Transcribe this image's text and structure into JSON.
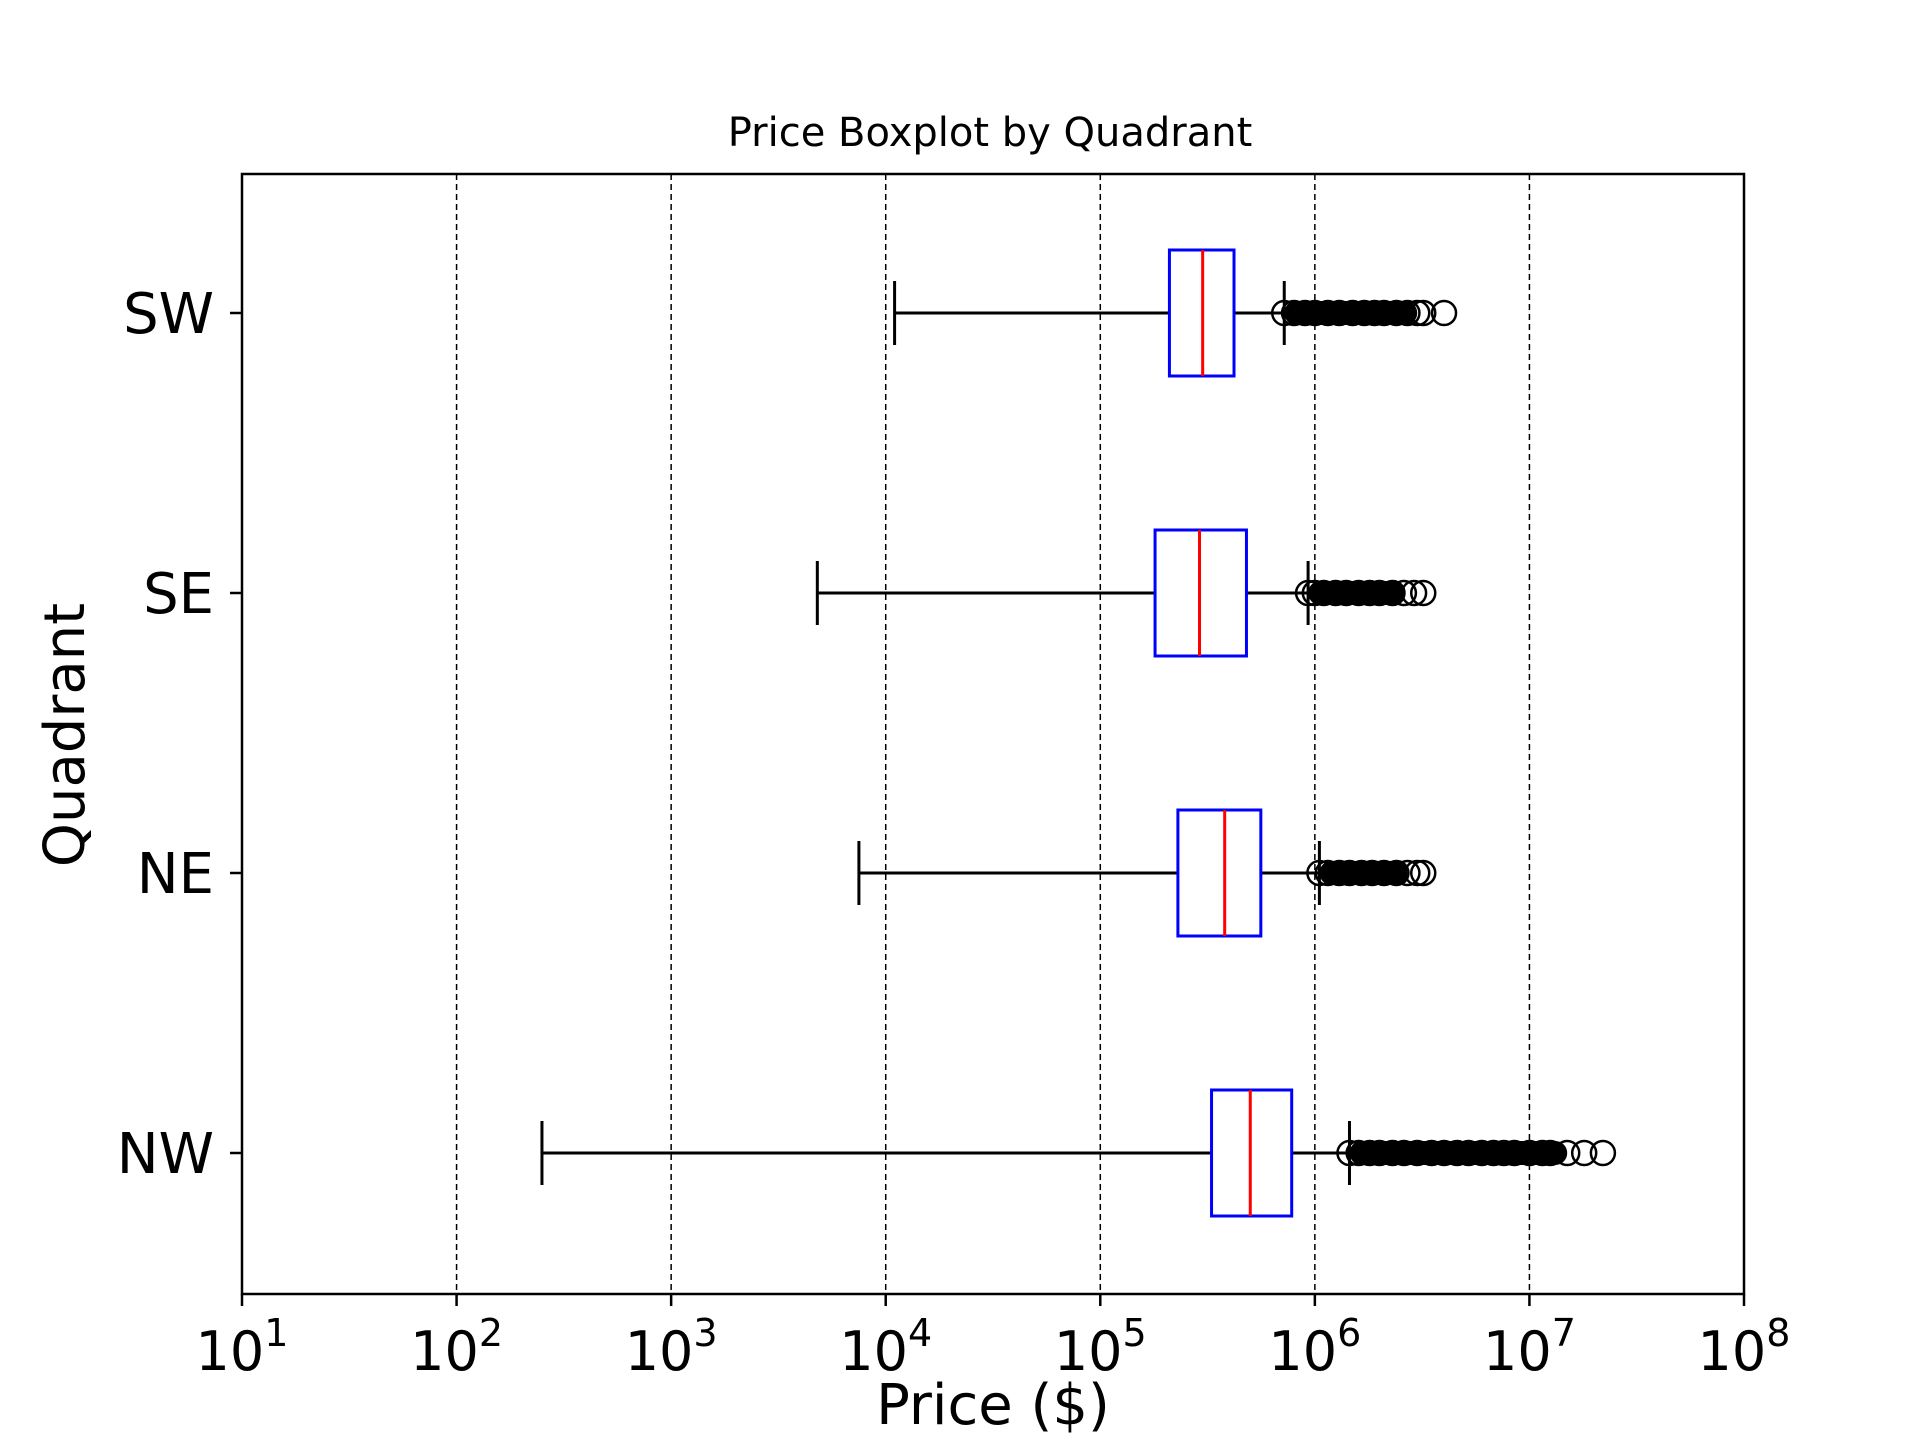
{
  "chart_data": {
    "type": "boxplot",
    "orientation": "horizontal",
    "title": "Price Boxplot by Quadrant",
    "xlabel": "Price ($)",
    "ylabel": "Quadrant",
    "xscale": "log",
    "xlim": [
      10,
      100000000
    ],
    "grid": "vertical-dashed",
    "x_ticks": [
      {
        "value": 10,
        "base": "10",
        "exp": "1"
      },
      {
        "value": 100,
        "base": "10",
        "exp": "2"
      },
      {
        "value": 1000,
        "base": "10",
        "exp": "3"
      },
      {
        "value": 10000,
        "base": "10",
        "exp": "4"
      },
      {
        "value": 100000,
        "base": "10",
        "exp": "5"
      },
      {
        "value": 1000000,
        "base": "10",
        "exp": "6"
      },
      {
        "value": 10000000,
        "base": "10",
        "exp": "7"
      },
      {
        "value": 100000000,
        "base": "10",
        "exp": "8"
      }
    ],
    "colors": {
      "box": "#0000ff",
      "median": "#ff0000",
      "whisker": "#000000"
    },
    "categories": [
      "SW",
      "SE",
      "NE",
      "NW"
    ],
    "boxes": [
      {
        "name": "SW",
        "whisker_low": 11000,
        "q1": 210000,
        "median": 300000,
        "q3": 420000,
        "whisker_high": 720000,
        "outliers": [
          720000,
          800000,
          900000,
          1000000,
          1150000,
          1300000,
          1500000,
          1700000,
          1900000,
          2100000,
          2400000,
          2700000,
          3000000,
          3200000,
          4000000
        ]
      },
      {
        "name": "SE",
        "whisker_low": 4800,
        "q1": 180000,
        "median": 290000,
        "q3": 480000,
        "whisker_high": 930000,
        "outliers": [
          930000,
          1000000,
          1100000,
          1250000,
          1400000,
          1600000,
          1800000,
          2000000,
          2300000,
          2600000,
          2900000,
          3200000
        ]
      },
      {
        "name": "NE",
        "whisker_low": 7500,
        "q1": 230000,
        "median": 380000,
        "q3": 560000,
        "whisker_high": 1050000,
        "outliers": [
          1050000,
          1150000,
          1300000,
          1450000,
          1650000,
          1850000,
          2100000,
          2400000,
          2700000,
          3000000,
          3200000
        ]
      },
      {
        "name": "NW",
        "whisker_low": 250,
        "q1": 330000,
        "median": 500000,
        "q3": 780000,
        "whisker_high": 1450000,
        "outliers": [
          1450000,
          1600000,
          1800000,
          2000000,
          2300000,
          2600000,
          3000000,
          3500000,
          4000000,
          4600000,
          5200000,
          6000000,
          6800000,
          7600000,
          8500000,
          10000000,
          11500000,
          12500000,
          15000000,
          18000000,
          22000000
        ]
      }
    ]
  }
}
